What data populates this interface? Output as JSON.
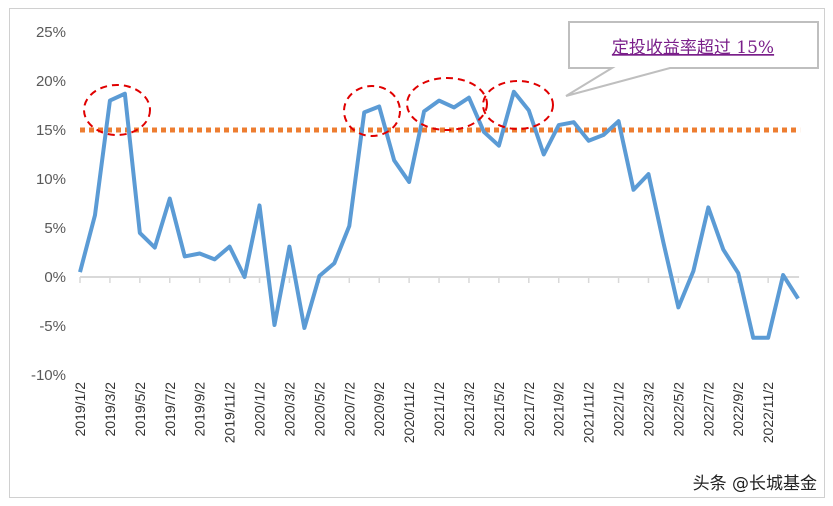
{
  "chart_data": {
    "type": "line",
    "title": "",
    "xlabel": "",
    "ylabel": "",
    "ylim": [
      -10,
      25
    ],
    "yticks": [
      "25%",
      "20%",
      "15%",
      "10%",
      "5%",
      "0%",
      "-5%",
      "-10%"
    ],
    "ytick_values": [
      25,
      20,
      15,
      10,
      5,
      0,
      -5,
      -10
    ],
    "xtick_labels": [
      "2019/1/2",
      "2019/3/2",
      "2019/5/2",
      "2019/7/2",
      "2019/9/2",
      "2019/11/2",
      "2020/1/2",
      "2020/3/2",
      "2020/5/2",
      "2020/7/2",
      "2020/9/2",
      "2020/11/2",
      "2021/1/2",
      "2021/3/2",
      "2021/5/2",
      "2021/7/2",
      "2021/9/2",
      "2021/11/2",
      "2022/1/2",
      "2022/3/2",
      "2022/5/2",
      "2022/7/2",
      "2022/9/2",
      "2022/11/2"
    ],
    "grid": false,
    "series": [
      {
        "color": "#5b9bd5",
        "values": [
          0.5,
          6.3,
          18.0,
          18.7,
          4.5,
          3.0,
          8.0,
          2.1,
          2.4,
          1.8,
          3.1,
          0.0,
          7.3,
          -4.9,
          3.1,
          -5.2,
          0.1,
          1.4,
          5.2,
          16.8,
          17.4,
          11.9,
          9.7,
          16.9,
          18.0,
          17.3,
          18.3,
          14.8,
          13.4,
          18.9,
          17.0,
          12.5,
          15.5,
          15.8,
          13.9,
          14.5,
          15.9,
          8.9,
          10.5,
          3.5,
          -3.1,
          0.6,
          7.1,
          2.8,
          0.4,
          -6.2,
          -6.2,
          0.2,
          -2.2
        ]
      }
    ],
    "reference_line": {
      "value": 15,
      "color": "#ed7d31",
      "style": "dotted"
    },
    "highlight_circles_color": "#e00000",
    "annotation": "定投收益率超过 15%"
  },
  "watermark": "头条 @长城基金"
}
